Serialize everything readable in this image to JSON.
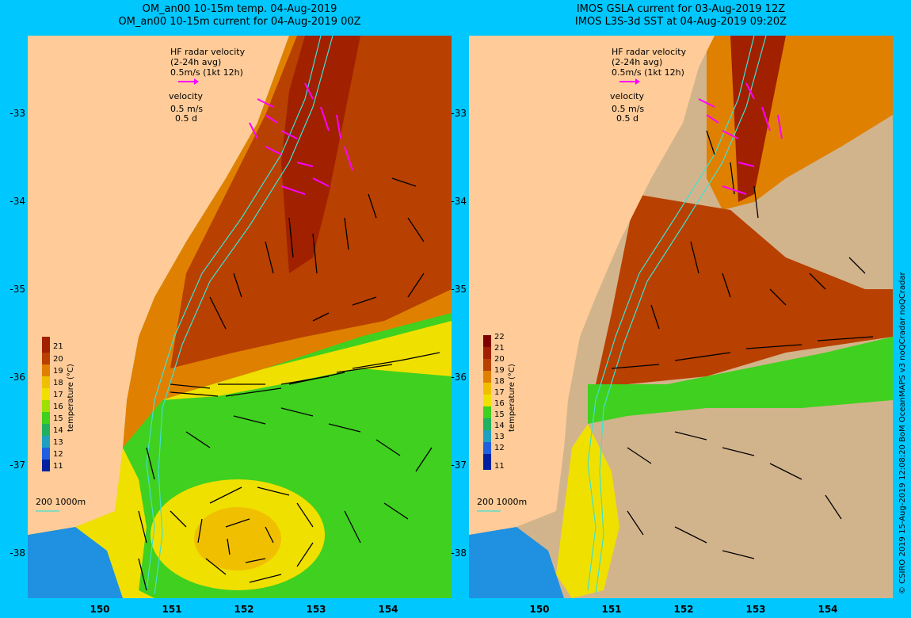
{
  "left_panel": {
    "title_line1": "OM_an00 10-15m temp. 04-Aug-2019",
    "title_line2": "OM_an00 10-15m current for 04-Aug-2019 00Z",
    "colorbar_ticks": [
      "21",
      "20",
      "19",
      "18",
      "17",
      "16",
      "15",
      "14",
      "13",
      "12",
      "11"
    ],
    "colorbar_label": "temperature (°C)"
  },
  "right_panel": {
    "title_line1": "IMOS GSLA current for 03-Aug-2019 12Z",
    "title_line2": "IMOS L3S-3d SST at 04-Aug-2019 09:20Z",
    "colorbar_ticks": [
      "22",
      "21",
      "20",
      "19",
      "18",
      "17",
      "16",
      "15",
      "14",
      "13",
      "12",
      "11"
    ],
    "colorbar_label": "temperature (°C)"
  },
  "legend": {
    "hf_radar_line1": "HF radar velocity",
    "hf_radar_line2": "(2-24h avg)",
    "hf_radar_line3": "0.5m/s (1kt 12h)",
    "velocity_line1": "velocity",
    "velocity_line2": "0.5 m/s",
    "velocity_line3": "0.5 d",
    "depth_contours": "200  1000m"
  },
  "axes": {
    "y_ticks": [
      "-33",
      "-34",
      "-35",
      "-36",
      "-37",
      "-38"
    ],
    "x_ticks": [
      "150",
      "151",
      "152",
      "153",
      "154"
    ]
  },
  "credit": "© CSIRO 2019   15-Aug-2019 12:08:20 BoM OceanMAPS v3 noQCradar noQCradar",
  "colors": {
    "background": "#00c8ff",
    "land": "#ffcc99",
    "cloud_mask": "#d2b48c",
    "warm": "#b84000",
    "hot": "#a02000",
    "orange": "#e08000",
    "yellow": "#f0e000",
    "green": "#40d020",
    "cyan_contour": "#40e0d0",
    "hf_radar": "#ff00ff"
  }
}
